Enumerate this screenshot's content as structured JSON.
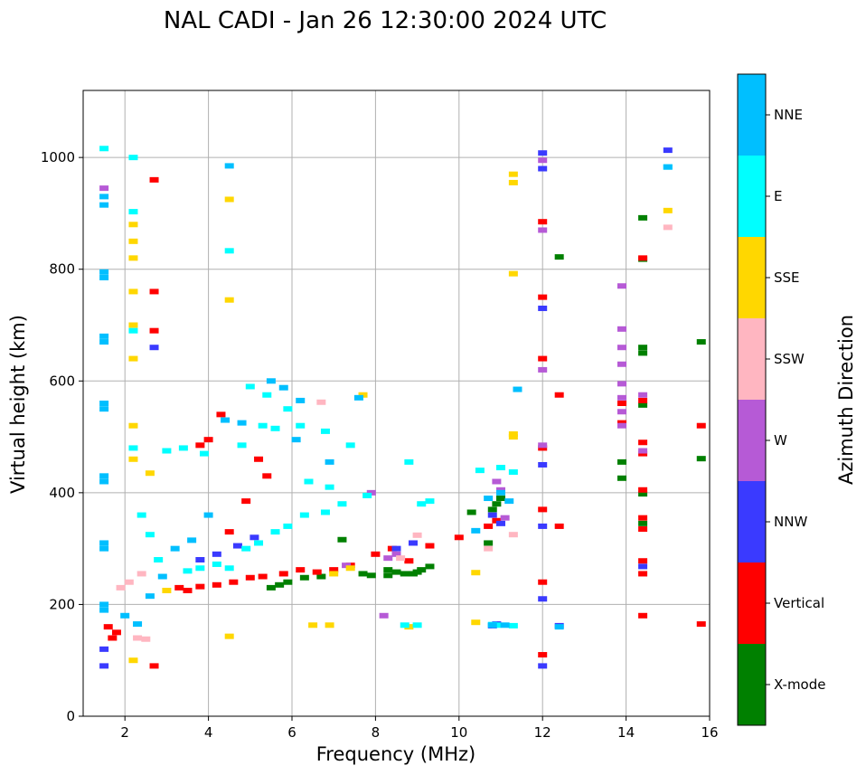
{
  "chart_data": {
    "type": "scatter",
    "title": "NAL CADI - Jan 26 12:30:00 2024 UTC",
    "xlabel": "Frequency (MHz)",
    "ylabel": "Virtual height (km)",
    "xlim": [
      1.0,
      16.0
    ],
    "ylim": [
      0,
      1120
    ],
    "xticks": [
      2,
      4,
      6,
      8,
      10,
      12,
      14,
      16
    ],
    "yticks": [
      0,
      200,
      400,
      600,
      800,
      1000
    ],
    "grid": true,
    "colorbar": {
      "label": "Azimuth Direction",
      "categories": [
        {
          "name": "X-mode",
          "color": "#008000"
        },
        {
          "name": "Vertical",
          "color": "#ff0000"
        },
        {
          "name": "NNW",
          "color": "#3a3aff"
        },
        {
          "name": "W",
          "color": "#b65ad6"
        },
        {
          "name": "SSW",
          "color": "#ffb6c1"
        },
        {
          "name": "SSE",
          "color": "#ffd700"
        },
        {
          "name": "E",
          "color": "#00ffff"
        },
        {
          "name": "NNE",
          "color": "#00bfff"
        }
      ]
    },
    "series": [
      {
        "name": "X-mode",
        "points": [
          [
            8.3,
            262
          ],
          [
            8.5,
            258
          ],
          [
            8.7,
            255
          ],
          [
            8.9,
            255
          ],
          [
            9.1,
            262
          ],
          [
            9.3,
            268
          ],
          [
            7.7,
            255
          ],
          [
            7.9,
            252
          ],
          [
            6.7,
            250
          ],
          [
            6.3,
            248
          ],
          [
            5.7,
            235
          ],
          [
            5.9,
            240
          ],
          [
            5.5,
            230
          ],
          [
            7.2,
            316
          ],
          [
            10.8,
            370
          ],
          [
            10.9,
            380
          ],
          [
            11.0,
            390
          ],
          [
            14.4,
            345
          ],
          [
            14.4,
            398
          ],
          [
            14.4,
            557
          ],
          [
            14.4,
            650
          ],
          [
            14.4,
            660
          ],
          [
            14.4,
            818
          ],
          [
            14.4,
            892
          ],
          [
            13.9,
            455
          ],
          [
            13.9,
            426
          ],
          [
            15.8,
            670
          ],
          [
            15.8,
            461
          ],
          [
            12.4,
            822
          ],
          [
            10.3,
            365
          ],
          [
            10.7,
            310
          ],
          [
            8.3,
            252
          ],
          [
            9.0,
            258
          ]
        ]
      },
      {
        "name": "Vertical",
        "points": [
          [
            1.6,
            160
          ],
          [
            1.7,
            140
          ],
          [
            1.8,
            150
          ],
          [
            3.3,
            230
          ],
          [
            3.5,
            225
          ],
          [
            3.8,
            232
          ],
          [
            4.2,
            235
          ],
          [
            4.6,
            240
          ],
          [
            5.0,
            248
          ],
          [
            5.3,
            250
          ],
          [
            5.8,
            255
          ],
          [
            6.2,
            262
          ],
          [
            6.6,
            258
          ],
          [
            7.0,
            262
          ],
          [
            7.4,
            270
          ],
          [
            8.0,
            290
          ],
          [
            8.4,
            300
          ],
          [
            8.8,
            278
          ],
          [
            9.3,
            305
          ],
          [
            10.0,
            320
          ],
          [
            10.7,
            340
          ],
          [
            10.9,
            350
          ],
          [
            12.0,
            110
          ],
          [
            12.0,
            240
          ],
          [
            12.0,
            370
          ],
          [
            12.0,
            480
          ],
          [
            12.0,
            640
          ],
          [
            12.0,
            750
          ],
          [
            12.0,
            885
          ],
          [
            14.4,
            180
          ],
          [
            14.4,
            255
          ],
          [
            14.4,
            278
          ],
          [
            14.4,
            335
          ],
          [
            14.4,
            355
          ],
          [
            14.4,
            405
          ],
          [
            14.4,
            470
          ],
          [
            14.4,
            490
          ],
          [
            14.4,
            565
          ],
          [
            14.4,
            820
          ],
          [
            15.8,
            520
          ],
          [
            15.8,
            165
          ],
          [
            12.4,
            340
          ],
          [
            12.4,
            575
          ],
          [
            4.3,
            540
          ],
          [
            4.0,
            495
          ],
          [
            3.8,
            485
          ],
          [
            5.2,
            460
          ],
          [
            5.4,
            430
          ],
          [
            4.9,
            385
          ],
          [
            4.5,
            330
          ],
          [
            2.7,
            90
          ],
          [
            2.7,
            960
          ],
          [
            2.7,
            690
          ],
          [
            2.7,
            760
          ],
          [
            13.9,
            525
          ],
          [
            13.9,
            560
          ]
        ]
      },
      {
        "name": "NNW",
        "points": [
          [
            12.0,
            90
          ],
          [
            12.0,
            210
          ],
          [
            12.0,
            340
          ],
          [
            12.0,
            450
          ],
          [
            12.0,
            730
          ],
          [
            12.0,
            980
          ],
          [
            12.0,
            1008
          ],
          [
            15.0,
            1013
          ],
          [
            12.4,
            162
          ],
          [
            10.8,
            162
          ],
          [
            10.9,
            165
          ],
          [
            3.8,
            280
          ],
          [
            4.2,
            290
          ],
          [
            4.7,
            305
          ],
          [
            5.1,
            320
          ],
          [
            2.7,
            660
          ],
          [
            1.5,
            90
          ],
          [
            1.5,
            120
          ],
          [
            8.5,
            300
          ],
          [
            8.9,
            310
          ],
          [
            10.8,
            360
          ],
          [
            11.0,
            345
          ],
          [
            14.4,
            268
          ]
        ]
      },
      {
        "name": "W",
        "points": [
          [
            10.9,
            420
          ],
          [
            11.0,
            405
          ],
          [
            11.1,
            355
          ],
          [
            13.9,
            770
          ],
          [
            13.9,
            693
          ],
          [
            13.9,
            660
          ],
          [
            13.9,
            630
          ],
          [
            13.9,
            595
          ],
          [
            13.9,
            570
          ],
          [
            13.9,
            545
          ],
          [
            13.9,
            520
          ],
          [
            12.0,
            995
          ],
          [
            12.0,
            870
          ],
          [
            12.0,
            620
          ],
          [
            12.0,
            485
          ],
          [
            14.4,
            575
          ],
          [
            14.4,
            475
          ],
          [
            8.5,
            290
          ],
          [
            8.3,
            283
          ],
          [
            7.9,
            400
          ],
          [
            7.3,
            270
          ],
          [
            8.2,
            180
          ],
          [
            1.5,
            945
          ]
        ]
      },
      {
        "name": "SSW",
        "points": [
          [
            2.3,
            140
          ],
          [
            2.5,
            138
          ],
          [
            1.9,
            230
          ],
          [
            2.1,
            240
          ],
          [
            2.4,
            255
          ],
          [
            6.7,
            562
          ],
          [
            15.0,
            875
          ],
          [
            11.3,
            325
          ],
          [
            9.0,
            324
          ],
          [
            8.6,
            283
          ],
          [
            10.7,
            300
          ]
        ]
      },
      {
        "name": "SSE",
        "points": [
          [
            11.3,
            970
          ],
          [
            11.3,
            955
          ],
          [
            11.3,
            792
          ],
          [
            11.3,
            500
          ],
          [
            11.3,
            505
          ],
          [
            8.8,
            160
          ],
          [
            6.5,
            163
          ],
          [
            6.9,
            163
          ],
          [
            10.4,
            257
          ],
          [
            10.4,
            168
          ],
          [
            2.2,
            820
          ],
          [
            2.2,
            880
          ],
          [
            2.2,
            850
          ],
          [
            2.2,
            760
          ],
          [
            2.2,
            700
          ],
          [
            2.2,
            640
          ],
          [
            2.2,
            520
          ],
          [
            2.2,
            460
          ],
          [
            2.2,
            100
          ],
          [
            4.5,
            925
          ],
          [
            4.5,
            745
          ],
          [
            4.5,
            143
          ],
          [
            7.7,
            575
          ],
          [
            2.6,
            435
          ],
          [
            3.0,
            225
          ],
          [
            7.0,
            255
          ],
          [
            7.4,
            265
          ],
          [
            15.0,
            905
          ]
        ]
      },
      {
        "name": "E",
        "points": [
          [
            2.2,
            1000
          ],
          [
            2.2,
            903
          ],
          [
            2.2,
            690
          ],
          [
            2.2,
            480
          ],
          [
            4.5,
            833
          ],
          [
            3.0,
            475
          ],
          [
            3.4,
            480
          ],
          [
            3.9,
            470
          ],
          [
            4.8,
            485
          ],
          [
            5.3,
            520
          ],
          [
            5.6,
            515
          ],
          [
            6.2,
            520
          ],
          [
            6.8,
            510
          ],
          [
            7.4,
            485
          ],
          [
            8.8,
            455
          ],
          [
            9.1,
            380
          ],
          [
            9.3,
            385
          ],
          [
            10.5,
            440
          ],
          [
            11.0,
            445
          ],
          [
            11.3,
            437
          ],
          [
            1.5,
            1016
          ],
          [
            15.0,
            983
          ],
          [
            10.8,
            164
          ],
          [
            10.9,
            163
          ],
          [
            11.3,
            162
          ],
          [
            3.5,
            260
          ],
          [
            3.8,
            265
          ],
          [
            4.2,
            272
          ],
          [
            4.5,
            265
          ],
          [
            4.9,
            300
          ],
          [
            5.2,
            310
          ],
          [
            5.6,
            330
          ],
          [
            5.9,
            340
          ],
          [
            6.3,
            360
          ],
          [
            6.8,
            365
          ],
          [
            7.2,
            380
          ],
          [
            7.8,
            395
          ],
          [
            8.7,
            163
          ],
          [
            9.0,
            163
          ],
          [
            2.4,
            360
          ],
          [
            2.6,
            325
          ],
          [
            2.8,
            280
          ],
          [
            5.0,
            590
          ],
          [
            5.4,
            575
          ],
          [
            5.9,
            550
          ],
          [
            6.4,
            420
          ],
          [
            6.9,
            410
          ]
        ]
      },
      {
        "name": "NNE",
        "points": [
          [
            1.5,
            915
          ],
          [
            1.5,
            930
          ],
          [
            1.5,
            795
          ],
          [
            1.5,
            785
          ],
          [
            1.5,
            670
          ],
          [
            1.5,
            680
          ],
          [
            1.5,
            550
          ],
          [
            1.5,
            560
          ],
          [
            1.5,
            430
          ],
          [
            1.5,
            420
          ],
          [
            1.5,
            310
          ],
          [
            1.5,
            300
          ],
          [
            1.5,
            190
          ],
          [
            1.5,
            200
          ],
          [
            4.5,
            985
          ],
          [
            11.4,
            585
          ],
          [
            12.4,
            160
          ],
          [
            15.0,
            983
          ],
          [
            10.8,
            163
          ],
          [
            11.1,
            163
          ],
          [
            10.4,
            332
          ],
          [
            11.0,
            400
          ],
          [
            10.7,
            390
          ],
          [
            11.2,
            385
          ],
          [
            5.8,
            588
          ],
          [
            6.2,
            565
          ],
          [
            4.0,
            360
          ],
          [
            3.6,
            315
          ],
          [
            3.2,
            300
          ],
          [
            2.9,
            250
          ],
          [
            2.6,
            215
          ],
          [
            2.0,
            180
          ],
          [
            2.3,
            165
          ],
          [
            4.4,
            530
          ],
          [
            4.8,
            525
          ],
          [
            5.5,
            600
          ],
          [
            6.1,
            495
          ],
          [
            6.9,
            455
          ],
          [
            7.6,
            570
          ]
        ]
      }
    ]
  }
}
